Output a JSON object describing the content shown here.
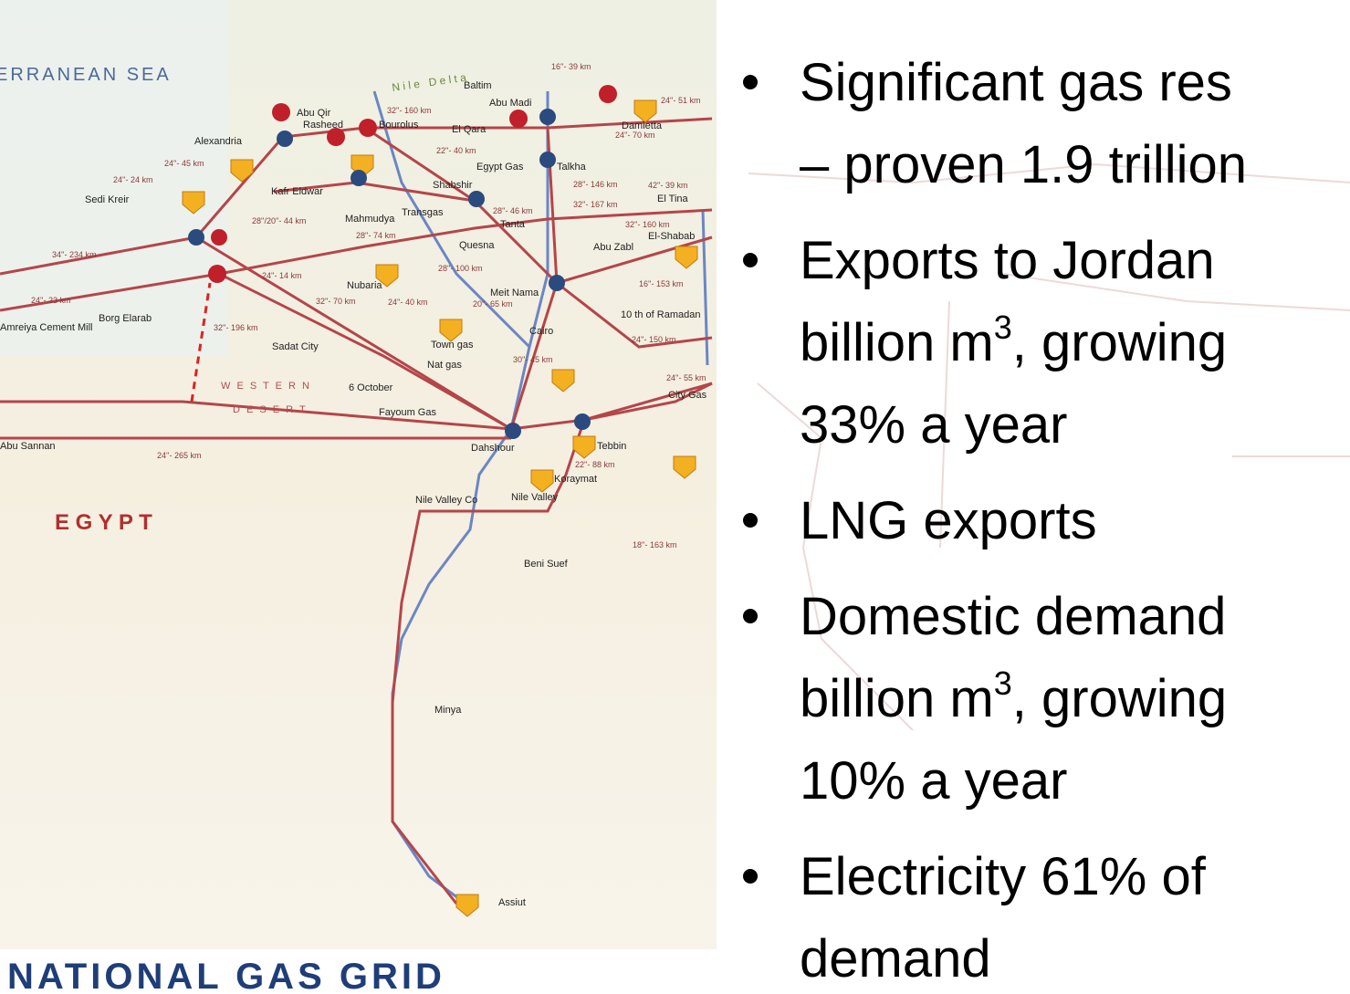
{
  "map": {
    "title": "NATIONAL GAS GRID",
    "sea": "ERRANEAN SEA",
    "country": "E G Y P T",
    "desert": [
      "W E S T E R N",
      "D E S E R T"
    ],
    "river": "N i l e   D e l t a",
    "places": [
      "Baltim",
      "Abu Qir",
      "Rasheed",
      "Bourolus",
      "Alexandria",
      "El Qara",
      "Abu Madi",
      "Damietta",
      "Talkha",
      "Shabshir",
      "Tanta",
      "Mahmudya",
      "Kafr Eldwar",
      "Sedi Kreir",
      "Nubaria",
      "Meit Nama",
      "Abu Zabl",
      "El Tina",
      "El-Shabab",
      "10 th of Ramadan",
      "Cairo",
      "Sadat City",
      "6 October",
      "Dahshour",
      "Tebbin",
      "Koraymat",
      "Nile Valley",
      "Beni Suef",
      "Minya",
      "Assiut",
      "Borg Elarab",
      "Amreiya Cement Mill",
      "Abu Sannan",
      "Nile Valley Co",
      "Fayoum Gas",
      "Egypt Gas",
      "Quesna",
      "Transgas",
      "City Gas",
      "Town gas",
      "Nat gas"
    ],
    "pipes": [
      "16''- 39 km",
      "32''- 160 km",
      "24''- 51 km",
      "24''- 70 km",
      "22''- 40 km",
      "24''- 45 km",
      "24''- 24 km",
      "28''/20''- 44 km",
      "28''- 74 km",
      "28''- 146 km",
      "42''- 39 km",
      "32''- 167 km",
      "28''- 46 km",
      "32''- 160 km",
      "28''- 100 km",
      "24''- 14 km",
      "34''- 234 km",
      "24''- 23 km",
      "32''- 70 km",
      "24''- 40 km",
      "20''- 65 km",
      "16''- 153 km",
      "32''- 196 km",
      "24''- 150 km",
      "30''- 45 km",
      "24''- 55 km",
      "22''- 88 km",
      "24''- 265 km",
      "18''- 163 km"
    ]
  },
  "bullets": [
    {
      "lines": [
        {
          "text": "Significant gas res"
        },
        {
          "text": "– proven 1.9 trillion"
        }
      ]
    },
    {
      "lines": [
        {
          "text": "Exports to Jordan"
        },
        {
          "text": "billion m",
          "sup": "3",
          "rest": ", growing"
        },
        {
          "text": "33% a year"
        }
      ]
    },
    {
      "lines": [
        {
          "text": "LNG exports"
        }
      ]
    },
    {
      "lines": [
        {
          "text": "Domestic demand"
        },
        {
          "text": "billion m",
          "sup": "3",
          "rest": ", growing"
        },
        {
          "text": "10% a year"
        }
      ]
    },
    {
      "lines": [
        {
          "text": "Electricity 61% of"
        },
        {
          "text": "demand"
        }
      ]
    }
  ]
}
